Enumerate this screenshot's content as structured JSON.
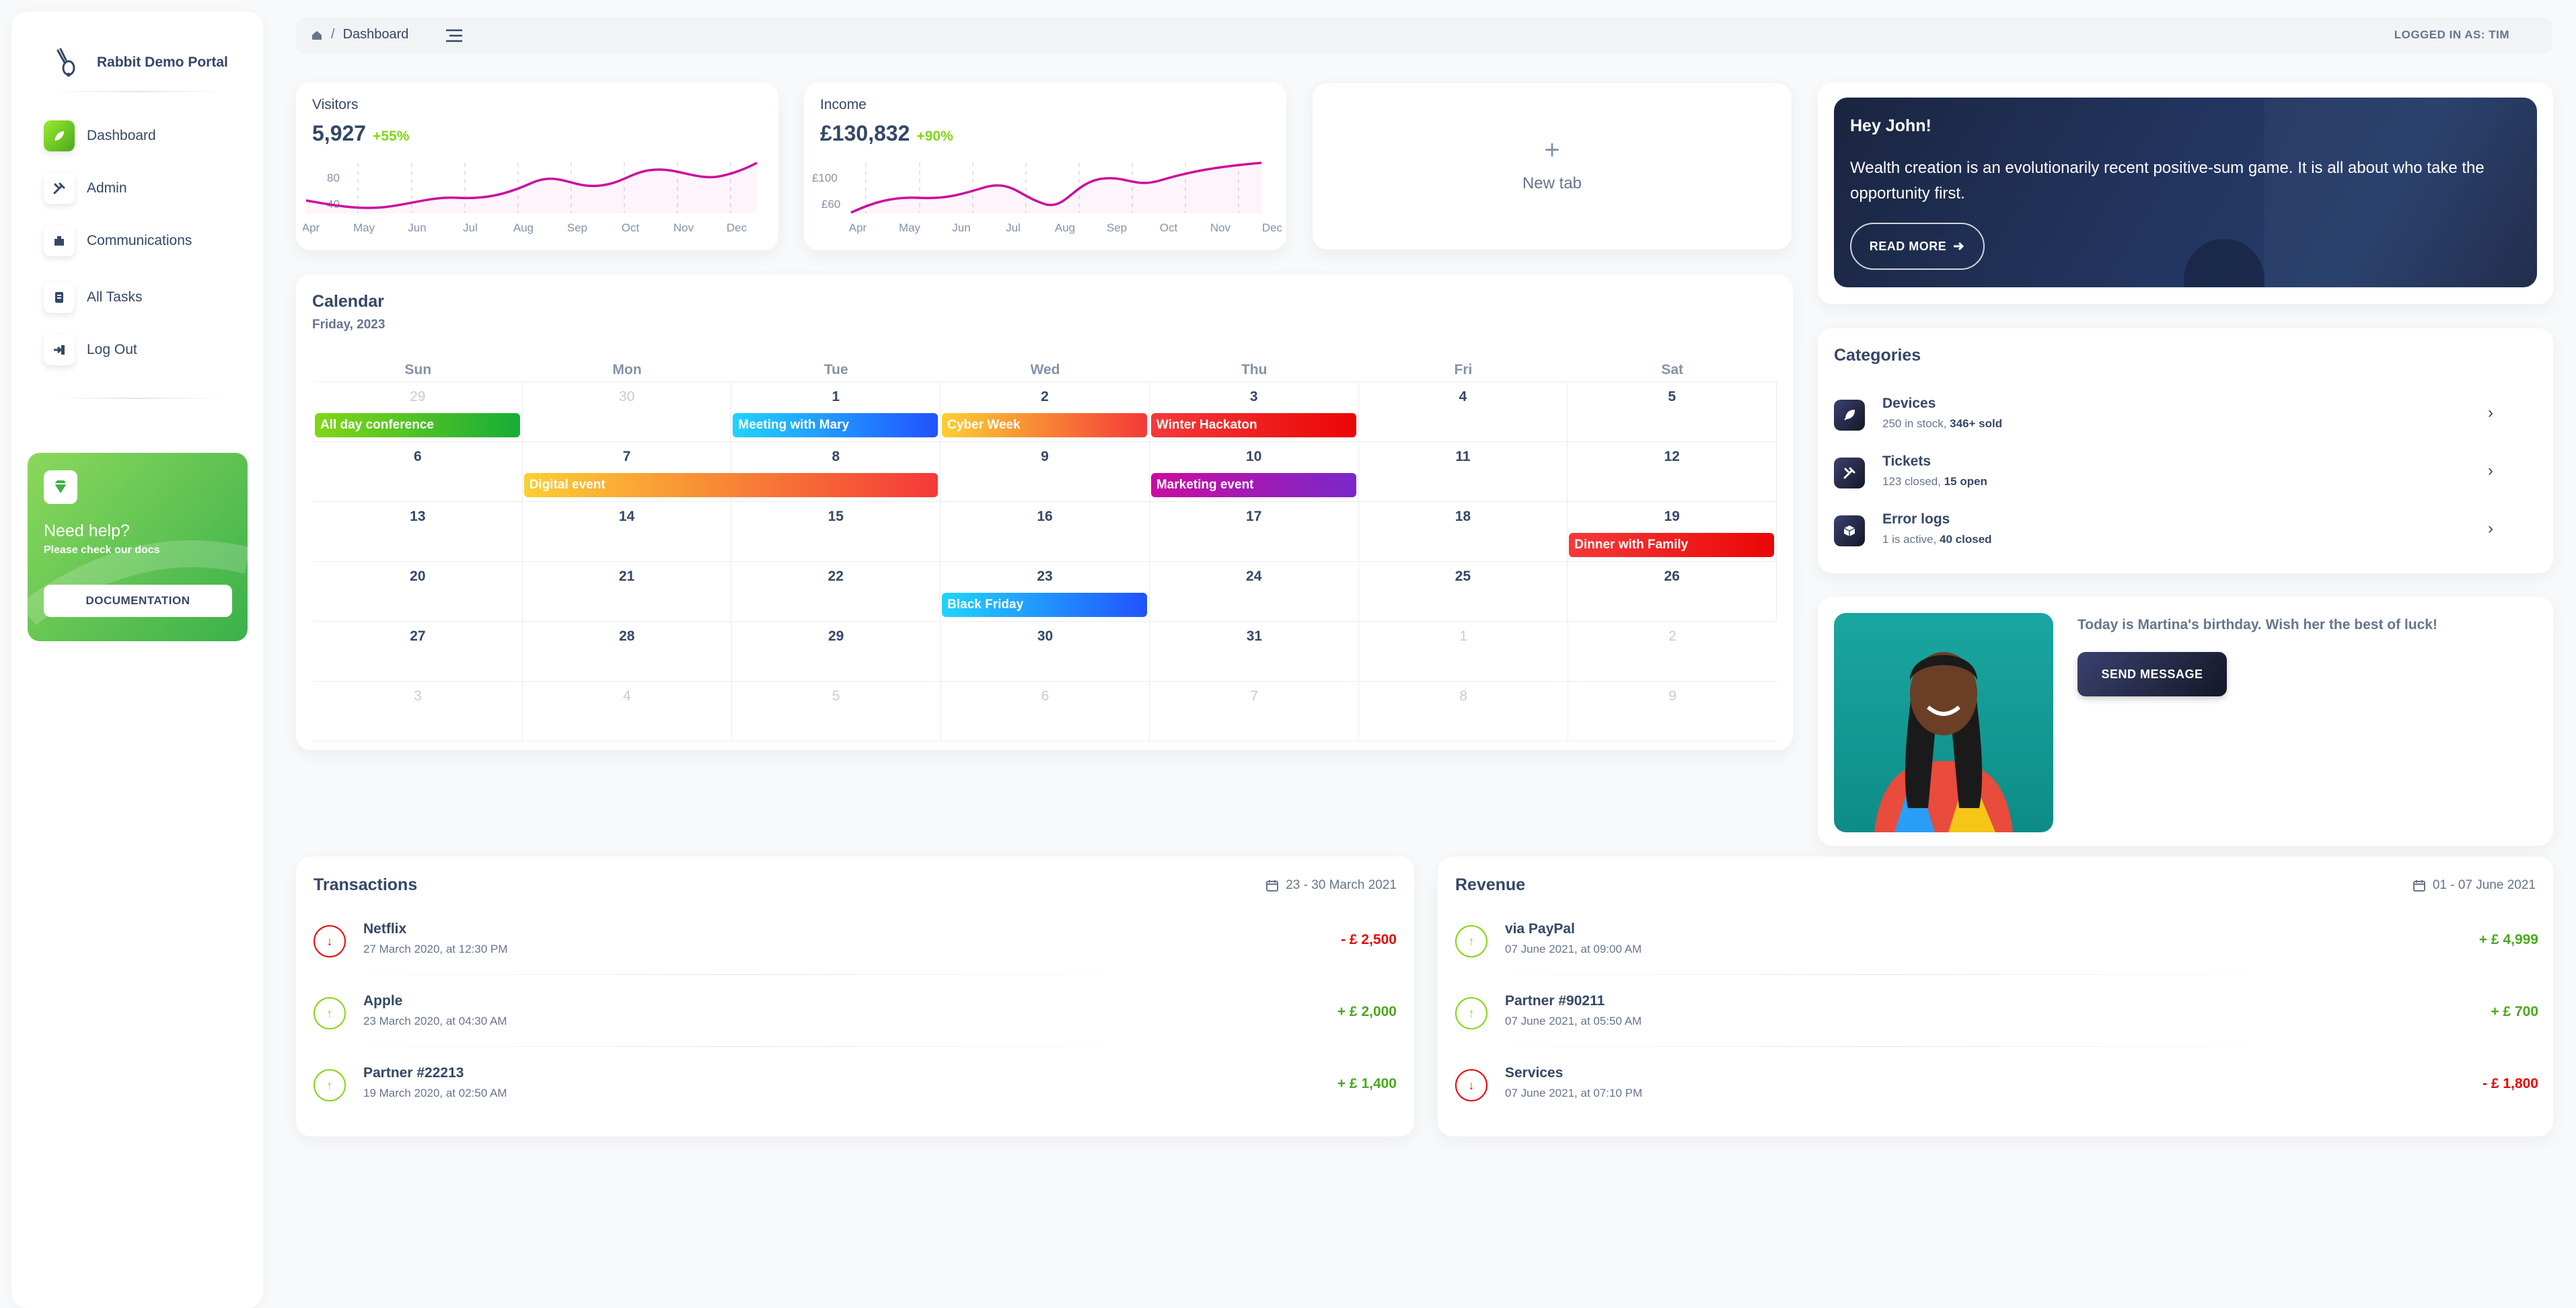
{
  "brand": {
    "name": "Rabbit Demo Portal"
  },
  "sidebar": {
    "items": [
      {
        "label": "Dashboard"
      },
      {
        "label": "Admin"
      },
      {
        "label": "Communications"
      },
      {
        "label": "All Tasks"
      },
      {
        "label": "Log Out"
      }
    ],
    "help": {
      "title": "Need help?",
      "subtitle": "Please check our docs",
      "button": "DOCUMENTATION"
    }
  },
  "topbar": {
    "breadcrumb": "Dashboard",
    "logged_in": "LOGGED IN AS: TIM"
  },
  "visitors": {
    "label": "Visitors",
    "value": "5,927",
    "change": "+55%",
    "y_ticks": [
      "80",
      "40"
    ],
    "months": [
      "Apr",
      "May",
      "Jun",
      "Jul",
      "Aug",
      "Sep",
      "Oct",
      "Nov",
      "Dec"
    ]
  },
  "income": {
    "label": "Income",
    "value": "£130,832",
    "change": "+90%",
    "y_ticks": [
      "£100",
      "£60"
    ],
    "months": [
      "Apr",
      "May",
      "Jun",
      "Jul",
      "Aug",
      "Sep",
      "Oct",
      "Nov",
      "Dec"
    ]
  },
  "newtab": {
    "plus": "+",
    "label": "New tab"
  },
  "hero": {
    "title": "Hey John!",
    "text": "Wealth creation is an evolutionarily recent positive-sum game. It is all about who take the opportunity first.",
    "button": "READ MORE"
  },
  "categories": {
    "title": "Categories",
    "items": [
      {
        "name": "Devices",
        "desc_a": "250 in stock, ",
        "desc_b": "346+ sold"
      },
      {
        "name": "Tickets",
        "desc_a": "123 closed, ",
        "desc_b": "15 open"
      },
      {
        "name": "Error logs",
        "desc_a": "1 is active, ",
        "desc_b": "40 closed"
      }
    ]
  },
  "birthday": {
    "text": "Today is Martina's birthday. Wish her the best of luck!",
    "button": "SEND MESSAGE"
  },
  "calendar": {
    "title": "Calendar",
    "subtitle": "Friday, 2023",
    "days": [
      "Sun",
      "Mon",
      "Tue",
      "Wed",
      "Thu",
      "Fri",
      "Sat"
    ],
    "weeks": [
      [
        "29",
        "30",
        "1",
        "2",
        "3",
        "4",
        "5"
      ],
      [
        "6",
        "7",
        "8",
        "9",
        "10",
        "11",
        "12"
      ],
      [
        "13",
        "14",
        "15",
        "16",
        "17",
        "18",
        "19"
      ],
      [
        "20",
        "21",
        "22",
        "23",
        "24",
        "25",
        "26"
      ],
      [
        "27",
        "28",
        "29",
        "30",
        "31",
        "1",
        "2"
      ],
      [
        "3",
        "4",
        "5",
        "6",
        "7",
        "8",
        "9"
      ]
    ],
    "events": [
      {
        "label": "All day conference",
        "week": 0,
        "start": 0,
        "span": 1,
        "color": "green"
      },
      {
        "label": "Meeting with Mary",
        "week": 0,
        "start": 2,
        "span": 1,
        "color": "blue"
      },
      {
        "label": "Cyber Week",
        "week": 0,
        "start": 3,
        "span": 1,
        "color": "orange"
      },
      {
        "label": "Winter Hackaton",
        "week": 0,
        "start": 4,
        "span": 1,
        "color": "red"
      },
      {
        "label": "Digital event",
        "week": 1,
        "start": 1,
        "span": 2,
        "color": "orange"
      },
      {
        "label": "Marketing event",
        "week": 1,
        "start": 4,
        "span": 1,
        "color": "purple"
      },
      {
        "label": "Dinner with Family",
        "week": 2,
        "start": 6,
        "span": 1,
        "color": "red"
      },
      {
        "label": "Black Friday",
        "week": 3,
        "start": 3,
        "span": 1,
        "color": "blue"
      }
    ]
  },
  "transactions": {
    "title": "Transactions",
    "range": "23 - 30 March 2021",
    "rows": [
      {
        "name": "Netflix",
        "date": "27 March 2020, at 12:30 PM",
        "amount": "- £ 2,500",
        "dir": "down"
      },
      {
        "name": "Apple",
        "date": "23 March 2020, at 04:30 AM",
        "amount": "+ £ 2,000",
        "dir": "up"
      },
      {
        "name": "Partner #22213",
        "date": "19 March 2020, at 02:50 AM",
        "amount": "+ £ 1,400",
        "dir": "up"
      }
    ]
  },
  "revenue": {
    "title": "Revenue",
    "range": "01 - 07 June 2021",
    "rows": [
      {
        "name": "via PayPal",
        "date": "07 June 2021, at 09:00 AM",
        "amount": "+ £ 4,999",
        "dir": "up"
      },
      {
        "name": "Partner #90211",
        "date": "07 June 2021, at 05:50 AM",
        "amount": "+ £ 700",
        "dir": "up"
      },
      {
        "name": "Services",
        "date": "07 June 2021, at 07:10 PM",
        "amount": "- £ 1,800",
        "dir": "down"
      }
    ]
  },
  "colors": {
    "accent": "#82d616",
    "brand_dark": "#344767",
    "line": "#cb0c9f",
    "negative": "#ea0606"
  },
  "icons": {
    "brand": "rabbit-icon",
    "dashboard": "leaf-icon",
    "admin": "tools-icon",
    "communications": "building-icon",
    "tasks": "document-icon",
    "logout": "logout-icon",
    "help": "diamond-icon",
    "calendar": "calendar-icon"
  }
}
